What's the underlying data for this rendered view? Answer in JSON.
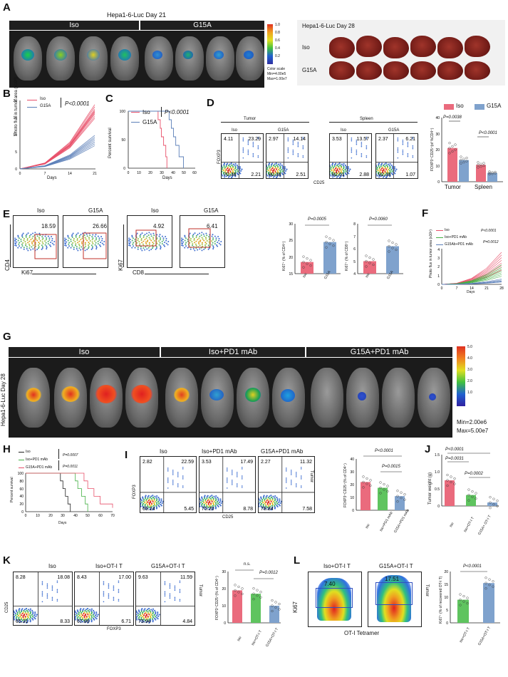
{
  "panels": {
    "A": {
      "label": "A",
      "header": "Hepa1-6-Luc Day 21",
      "group_iso": "Iso",
      "group_g15a": "G15A",
      "colorscale_title": "Color scale",
      "colorscale_min": "Min=4.00e5",
      "colorscale_max": "Max=1.00e7",
      "colorscale_ticks": [
        "1.0",
        "0.8",
        "0.6",
        "0.4",
        "0.2"
      ],
      "liver_header": "Hepa1-6-Luc Day 28",
      "liver_iso": "Iso",
      "liver_g15a": "G15A"
    },
    "B": {
      "label": "B",
      "legend_iso": "Iso",
      "legend_g15a": "G15A",
      "pval": "P<0.0001",
      "ylabel": "Photo flux in tumor area (x10⁸)",
      "xlabel": "Days"
    },
    "C": {
      "label": "C",
      "legend_iso": "Iso",
      "legend_g15a": "G15A",
      "pval": "P<0.0001",
      "ylabel": "Percent survival",
      "xlabel": "Days"
    },
    "D": {
      "label": "D",
      "tumor": "Tumor",
      "spleen": "Spleen",
      "iso": "Iso",
      "g15a": "G15A",
      "xlabel": "CD25",
      "ylabel": "FOXP3",
      "quads": [
        [
          "4.11",
          "23.29",
          "70.38",
          "2.21"
        ],
        [
          "2.97",
          "14.14",
          "80.38",
          "2.51"
        ],
        [
          "3.53",
          "13.57",
          "82.01",
          "2.88"
        ],
        [
          "2.37",
          "6.21",
          "92.38",
          "1.07"
        ]
      ],
      "bar_legend_iso": "Iso",
      "bar_legend_g15a": "G15A",
      "pval1": "P=0.0038",
      "pval2": "P<0.0001",
      "bar_ylabel": "FOXP3⁺CD25⁺(of %CD4⁺)",
      "bar_x1": "Tumor",
      "bar_x2": "Spleen"
    },
    "E": {
      "label": "E",
      "iso": "Iso",
      "g15a": "G15A",
      "g1": "18.59",
      "g2": "26.66",
      "g3": "4.92",
      "g4": "6.41",
      "cd4": "CD4",
      "ki67": "Ki67",
      "ki67b": "Ki67",
      "cd8": "CD8",
      "pval1": "P=0.0005",
      "ylabel1": "Ki67⁺ (% of CD4⁺)",
      "pval2": "P=0.0060",
      "ylabel2": "Ki67⁺ (% of CD8⁺)",
      "xiso": "Iso",
      "xg15a": "G15A"
    },
    "F": {
      "label": "F",
      "legend_iso": "Iso",
      "legend_pd1": "Iso+PD1 mAb",
      "legend_g15a": "G15Ab+PD1 mAb",
      "pval1": "P<0.0001",
      "pval2": "P=0.0012",
      "ylabel": "Photo flux in tumor area (x10⁸)",
      "xlabel": "Days"
    },
    "G": {
      "label": "G",
      "side": "Hepa1-6-Luc Day 28",
      "g1": "Iso",
      "g2": "Iso+PD1  mAb",
      "g3": "G15A+PD1  mAb",
      "scale_ticks": [
        "5.0",
        "4.0",
        "3.0",
        "2.0",
        "1.0"
      ],
      "scale_min": "Min=2.00e6",
      "scale_max": "Max=5.00e7"
    },
    "H": {
      "label": "H",
      "legend_iso": "Iso",
      "legend_pd1": "Iso+PD1 mAb",
      "legend_g15a": "G15A+PD1 mAb",
      "pval1": "P=0.0007",
      "pval2": "P=0.0011",
      "ylabel": "Percent survival",
      "xlabel": "Days"
    },
    "I": {
      "label": "I",
      "t1": "Iso",
      "t2": "Iso+PD1 mAb",
      "t3": "G15A+PD1 mAb",
      "side": "Tumor",
      "xlabel": "CD25",
      "ylabel": "FOXP3",
      "quads": [
        [
          "2.82",
          "22.59",
          "69.14",
          "5.45"
        ],
        [
          "3.53",
          "17.49",
          "70.20",
          "8.78"
        ],
        [
          "2.27",
          "11.32",
          "78.84",
          "7.58"
        ]
      ],
      "pval1": "P<0.0001",
      "pval2": "P=0.0015",
      "ylabel_bar": "FOXP3⁺CD25⁺(% of CD4⁺)",
      "x1": "Iso",
      "x2": "Iso+PD1 mAb",
      "x3": "G15A+PD1 mAb"
    },
    "J": {
      "label": "J",
      "pval1": "P<0.0001",
      "pval2": "P=0.0031",
      "pval3": "P=0.0002",
      "ylabel": "Tumor weight (g)",
      "x1": "Iso",
      "x2": "Iso+OT-I T",
      "x3": "G15A+ OT-I T"
    },
    "K": {
      "label": "K",
      "t1": "Iso",
      "t2": "Iso+OT-I T",
      "t3": "G15A+OT-I T",
      "side": "Tumor",
      "xlabel": "FOXP3",
      "ylabel": "CD25",
      "quads": [
        [
          "8.28",
          "18.08",
          "65.31",
          "8.33"
        ],
        [
          "8.43",
          "17.00",
          "67.86",
          "6.71"
        ],
        [
          "9.63",
          "11.59",
          "73.94",
          "4.84"
        ]
      ],
      "pns": "n.s.",
      "pval": "P=0.0012",
      "ylabel_bar": "FOXP3⁺CD25⁺(% of CD4⁺)",
      "x1": "Iso",
      "x2": "Iso+OT-I T",
      "x3": "G15A+OT-I T"
    },
    "L": {
      "label": "L",
      "t1": "Iso+OT-I T",
      "t2": "G15A+OT-I T",
      "side": "Tumor",
      "g1": "7.40",
      "g2": "17.51",
      "xlabel": "OT-I Tetramer",
      "ylabel": "Ki67",
      "pval": "P<0.0001",
      "ylabel_bar": "Ki67⁺ (% of recovered OT-I T)",
      "x1": "Iso+OT-I T",
      "x2": "G15A+OT-I T"
    }
  },
  "chart_data": [
    {
      "type": "line",
      "panel": "B",
      "xlabel": "Days",
      "ylabel": "Photo flux in tumor area (x10⁸)",
      "xticks": [
        0,
        7,
        14,
        21
      ],
      "yticks": [
        0,
        5,
        10,
        15,
        20
      ],
      "ylim": [
        0,
        20
      ],
      "series": [
        {
          "name": "Iso",
          "color": "#e8506a",
          "endpoints": [
            18.5,
            17.5,
            16.5,
            15.8,
            15.2,
            14.6,
            14.0,
            13.2,
            12.5
          ]
        },
        {
          "name": "G15A",
          "color": "#5b7fb8",
          "endpoints": [
            9.5,
            8.8,
            8.2,
            7.6,
            7.0,
            6.4,
            5.8
          ]
        }
      ]
    },
    {
      "type": "line",
      "panel": "C",
      "xlabel": "Days",
      "ylabel": "Percent survival",
      "xticks": [
        0,
        10,
        20,
        30,
        40,
        50,
        60
      ],
      "yticks": [
        0,
        50,
        100
      ],
      "series": [
        {
          "name": "Iso",
          "points": [
            [
              0,
              100
            ],
            [
              25,
              100
            ],
            [
              27,
              85
            ],
            [
              29,
              70
            ],
            [
              30,
              55
            ],
            [
              32,
              40
            ],
            [
              34,
              20
            ],
            [
              35,
              0
            ]
          ]
        },
        {
          "name": "G15A",
          "points": [
            [
              0,
              100
            ],
            [
              35,
              100
            ],
            [
              37,
              85
            ],
            [
              39,
              70
            ],
            [
              41,
              55
            ],
            [
              43,
              40
            ],
            [
              46,
              20
            ],
            [
              50,
              0
            ]
          ]
        }
      ]
    },
    {
      "type": "bar",
      "panel": "D",
      "categories": [
        "Tumor",
        "Spleen"
      ],
      "ylim": [
        0,
        40
      ],
      "yticks": [
        0,
        10,
        20,
        30,
        40
      ],
      "series": [
        {
          "name": "Iso",
          "values": [
            21,
            10.5
          ]
        },
        {
          "name": "G15A",
          "values": [
            13.5,
            5.5
          ]
        }
      ]
    },
    {
      "type": "bar",
      "panel": "E1",
      "categories": [
        "Iso",
        "G15A"
      ],
      "values": [
        18.5,
        24.5
      ],
      "ylim": [
        15,
        30
      ],
      "yticks": [
        15,
        20,
        25,
        30
      ]
    },
    {
      "type": "bar",
      "panel": "E2",
      "categories": [
        "Iso",
        "G15A"
      ],
      "values": [
        5,
        6.2
      ],
      "ylim": [
        4,
        8
      ],
      "yticks": [
        4,
        5,
        6,
        7,
        8
      ]
    },
    {
      "type": "line",
      "panel": "F",
      "xticks": [
        0,
        7,
        14,
        21,
        28
      ],
      "yticks": [
        0,
        1,
        2,
        3,
        4
      ],
      "ylim": [
        0,
        4
      ]
    },
    {
      "type": "line",
      "panel": "H",
      "xticks": [
        0,
        10,
        20,
        30,
        40,
        50,
        60,
        70
      ],
      "yticks": [
        0,
        20,
        40,
        60,
        80,
        100
      ]
    },
    {
      "type": "bar",
      "panel": "I",
      "categories": [
        "Iso",
        "Iso+PD1 mAb",
        "G15A+PD1 mAb"
      ],
      "values": [
        22,
        17.5,
        11
      ],
      "ylim": [
        0,
        40
      ],
      "yticks": [
        0,
        10,
        20,
        30,
        40
      ]
    },
    {
      "type": "bar",
      "panel": "J",
      "categories": [
        "Iso",
        "Iso+OT-I T",
        "G15A+ OT-I T"
      ],
      "values": [
        0.75,
        0.32,
        0.1
      ],
      "ylim": [
        0,
        1.5
      ],
      "yticks": [
        0,
        0.5,
        1.0,
        1.5
      ]
    },
    {
      "type": "bar",
      "panel": "K",
      "categories": [
        "Iso",
        "Iso+OT-I T",
        "G15A+OT-I T"
      ],
      "values": [
        19,
        17,
        10
      ],
      "ylim": [
        0,
        30
      ],
      "yticks": [
        0,
        10,
        20,
        30
      ]
    },
    {
      "type": "bar",
      "panel": "L",
      "categories": [
        "Iso+OT-I T",
        "G15A+OT-I T"
      ],
      "values": [
        9,
        15.5
      ],
      "ylim": [
        0,
        20
      ],
      "yticks": [
        0,
        5,
        10,
        15,
        20
      ]
    }
  ]
}
